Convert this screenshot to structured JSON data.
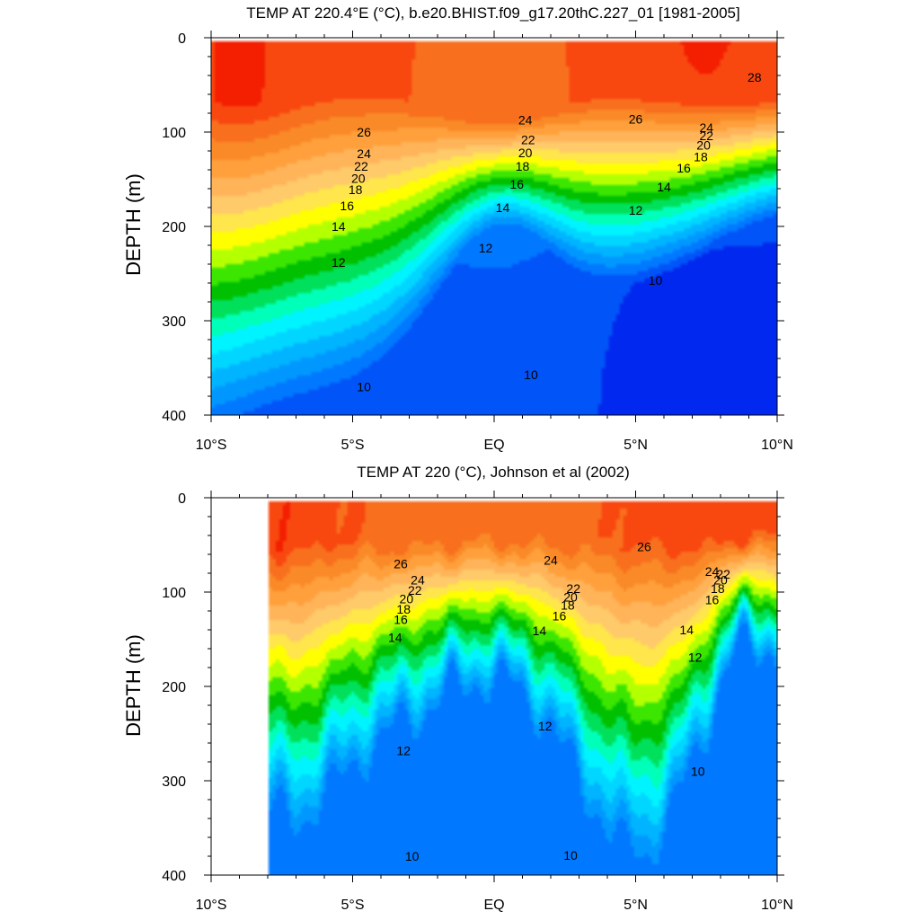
{
  "chart_data": [
    {
      "type": "contour",
      "title": "TEMP AT 220.4°E (°C), b.e20.BHIST.f09_g17.20thC.227_01 [1981-2005]",
      "xlabel": "",
      "ylabel": "DEPTH (m)",
      "x_range": [
        -10,
        10
      ],
      "y_range": [
        0,
        400
      ],
      "y_inverted": true,
      "x_ticks": [
        -10,
        -5,
        0,
        5,
        10
      ],
      "x_tick_labels": [
        "10°S",
        "5°S",
        "EQ",
        "5°N",
        "10°N"
      ],
      "y_ticks": [
        0,
        100,
        200,
        300,
        400
      ],
      "y_tick_labels": [
        "0",
        "100",
        "200",
        "300",
        "400"
      ],
      "data_x_start": -10,
      "contour_labels": [
        {
          "text": "28",
          "x": 9.2,
          "y": 42
        },
        {
          "text": "26",
          "x": -4.6,
          "y": 100
        },
        {
          "text": "26",
          "x": 5.0,
          "y": 86
        },
        {
          "text": "24",
          "x": 1.1,
          "y": 87
        },
        {
          "text": "24",
          "x": 7.5,
          "y": 95
        },
        {
          "text": "24",
          "x": -4.6,
          "y": 123
        },
        {
          "text": "22",
          "x": 1.2,
          "y": 108
        },
        {
          "text": "22",
          "x": 7.5,
          "y": 104
        },
        {
          "text": "22",
          "x": -4.7,
          "y": 136
        },
        {
          "text": "20",
          "x": 1.1,
          "y": 122
        },
        {
          "text": "20",
          "x": 7.4,
          "y": 114
        },
        {
          "text": "20",
          "x": -4.8,
          "y": 149
        },
        {
          "text": "18",
          "x": 1.0,
          "y": 136
        },
        {
          "text": "18",
          "x": 7.3,
          "y": 126
        },
        {
          "text": "18",
          "x": -4.9,
          "y": 161
        },
        {
          "text": "16",
          "x": 0.8,
          "y": 155
        },
        {
          "text": "16",
          "x": 6.7,
          "y": 138
        },
        {
          "text": "16",
          "x": -5.2,
          "y": 178
        },
        {
          "text": "14",
          "x": 0.3,
          "y": 180
        },
        {
          "text": "14",
          "x": 6.0,
          "y": 158
        },
        {
          "text": "14",
          "x": -5.5,
          "y": 200
        },
        {
          "text": "12",
          "x": -0.3,
          "y": 223
        },
        {
          "text": "12",
          "x": 5.0,
          "y": 183
        },
        {
          "text": "12",
          "x": -5.5,
          "y": 238
        },
        {
          "text": "10",
          "x": 5.7,
          "y": 257
        },
        {
          "text": "10",
          "x": -4.6,
          "y": 370
        },
        {
          "text": "10",
          "x": 1.3,
          "y": 357
        }
      ]
    },
    {
      "type": "contour",
      "title": "TEMP AT 220 (°C), Johnson et al (2002)",
      "xlabel": "",
      "ylabel": "DEPTH (m)",
      "x_range": [
        -10,
        10
      ],
      "y_range": [
        0,
        400
      ],
      "y_inverted": true,
      "x_ticks": [
        -10,
        -5,
        0,
        5,
        10
      ],
      "x_tick_labels": [
        "10°S",
        "5°S",
        "EQ",
        "5°N",
        "10°N"
      ],
      "y_ticks": [
        0,
        100,
        200,
        300,
        400
      ],
      "y_tick_labels": [
        "0",
        "100",
        "200",
        "300",
        "400"
      ],
      "data_x_start": -8,
      "contour_labels": [
        {
          "text": "26",
          "x": -3.3,
          "y": 70
        },
        {
          "text": "26",
          "x": 5.3,
          "y": 52
        },
        {
          "text": "24",
          "x": 2.0,
          "y": 66
        },
        {
          "text": "24",
          "x": -2.7,
          "y": 87
        },
        {
          "text": "24",
          "x": 7.7,
          "y": 78
        },
        {
          "text": "22",
          "x": -2.8,
          "y": 98
        },
        {
          "text": "22",
          "x": 2.8,
          "y": 96
        },
        {
          "text": "22",
          "x": 8.1,
          "y": 81
        },
        {
          "text": "20",
          "x": -3.1,
          "y": 107
        },
        {
          "text": "20",
          "x": 2.7,
          "y": 105
        },
        {
          "text": "20",
          "x": 8.0,
          "y": 87
        },
        {
          "text": "18",
          "x": -3.2,
          "y": 118
        },
        {
          "text": "18",
          "x": 2.6,
          "y": 114
        },
        {
          "text": "18",
          "x": 7.9,
          "y": 96
        },
        {
          "text": "16",
          "x": -3.3,
          "y": 129
        },
        {
          "text": "16",
          "x": 2.3,
          "y": 125
        },
        {
          "text": "16",
          "x": 7.7,
          "y": 108
        },
        {
          "text": "14",
          "x": -3.5,
          "y": 148
        },
        {
          "text": "14",
          "x": 1.6,
          "y": 141
        },
        {
          "text": "14",
          "x": 6.8,
          "y": 140
        },
        {
          "text": "12",
          "x": 1.8,
          "y": 242
        },
        {
          "text": "12",
          "x": -3.2,
          "y": 268
        },
        {
          "text": "12",
          "x": 7.1,
          "y": 169
        },
        {
          "text": "10",
          "x": 7.2,
          "y": 290
        },
        {
          "text": "10",
          "x": -2.9,
          "y": 380
        },
        {
          "text": "10",
          "x": 2.7,
          "y": 379
        }
      ]
    }
  ],
  "colors": {
    "palette": [
      "#0028ee",
      "#0054f8",
      "#0078ff",
      "#0098ff",
      "#00b4ff",
      "#00d6ff",
      "#00f4ff",
      "#00ffb8",
      "#00e05a",
      "#00c000",
      "#3ce600",
      "#b4ff00",
      "#ffff00",
      "#ffe64c",
      "#ffca6a",
      "#ffb45a",
      "#ffa03c",
      "#fa8a28",
      "#f8701e",
      "#f84810",
      "#f41e00"
    ]
  }
}
